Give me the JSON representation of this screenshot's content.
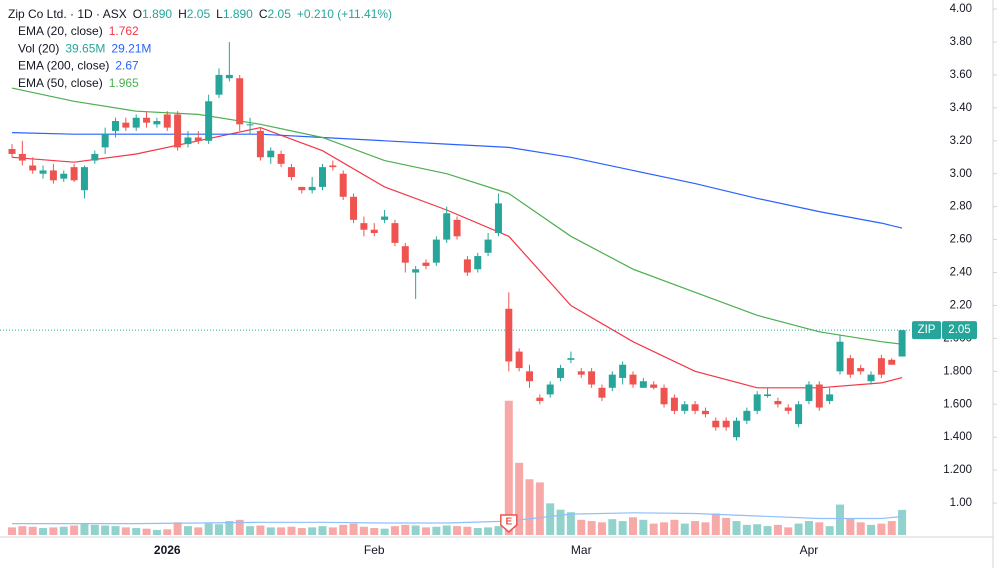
{
  "chart_data": {
    "type": "candlestick",
    "title": "Zip Co Ltd. · 1D · ASX",
    "ohlc_letters": [
      "O",
      "H",
      "L",
      "C"
    ],
    "ohlc_labels": [
      "1.890",
      "2.05",
      "1.890",
      "2.05"
    ],
    "change_label": "+0.210 (+11.41%)",
    "symbol_tag": "ZIP",
    "event_marker": "E",
    "up_color": "#26a69a",
    "down_color": "#ef5350",
    "categories": [
      null,
      null,
      null,
      null,
      null,
      null,
      null,
      null,
      null,
      null,
      null,
      null,
      null,
      null,
      null,
      "2026",
      null,
      null,
      null,
      null,
      null,
      null,
      null,
      null,
      null,
      null,
      null,
      null,
      null,
      null,
      null,
      null,
      null,
      null,
      null,
      "Feb",
      null,
      null,
      null,
      null,
      null,
      null,
      null,
      null,
      null,
      null,
      null,
      null,
      null,
      null,
      null,
      null,
      null,
      null,
      null,
      "Mar",
      null,
      null,
      null,
      null,
      null,
      null,
      null,
      null,
      null,
      null,
      null,
      null,
      null,
      null,
      null,
      null,
      null,
      null,
      null,
      null,
      null,
      "Apr",
      null,
      null,
      null,
      null,
      null,
      null,
      null,
      null,
      null
    ],
    "open": [
      3.15,
      3.12,
      3.05,
      3.0,
      3.02,
      2.97,
      3.04,
      2.9,
      3.08,
      3.16,
      3.26,
      3.31,
      3.28,
      3.34,
      3.3,
      3.36,
      3.36,
      3.18,
      3.22,
      3.2,
      3.48,
      3.58,
      3.58,
      3.3,
      3.26,
      3.1,
      3.12,
      3.04,
      2.92,
      2.9,
      2.92,
      3.05,
      3.0,
      2.86,
      2.7,
      2.66,
      2.72,
      2.7,
      2.56,
      2.4,
      2.46,
      2.46,
      2.6,
      2.72,
      2.48,
      2.42,
      2.52,
      2.64,
      2.18,
      1.92,
      1.8,
      1.64,
      1.66,
      1.76,
      1.87,
      1.8,
      1.8,
      1.7,
      1.7,
      1.76,
      1.78,
      1.7,
      1.72,
      1.7,
      1.64,
      1.56,
      1.6,
      1.56,
      1.5,
      1.5,
      1.4,
      1.5,
      1.56,
      1.65,
      1.62,
      1.58,
      1.48,
      1.62,
      1.72,
      1.62,
      1.8,
      1.88,
      1.82,
      1.74,
      1.88,
      1.87,
      1.89
    ],
    "high": [
      3.18,
      3.2,
      3.1,
      3.05,
      3.06,
      3.02,
      3.06,
      3.05,
      3.14,
      3.28,
      3.34,
      3.34,
      3.36,
      3.38,
      3.34,
      3.38,
      3.38,
      3.26,
      3.26,
      3.48,
      3.64,
      3.8,
      3.6,
      3.34,
      3.28,
      3.16,
      3.14,
      3.06,
      2.92,
      2.98,
      3.06,
      3.08,
      3.02,
      2.88,
      2.74,
      2.7,
      2.78,
      2.72,
      2.58,
      2.44,
      2.48,
      2.62,
      2.8,
      2.74,
      2.5,
      2.52,
      2.64,
      2.88,
      2.28,
      1.94,
      1.84,
      1.66,
      1.74,
      1.84,
      1.92,
      1.82,
      1.82,
      1.72,
      1.8,
      1.86,
      1.8,
      1.76,
      1.74,
      1.72,
      1.66,
      1.62,
      1.62,
      1.58,
      1.52,
      1.52,
      1.52,
      1.58,
      1.68,
      1.7,
      1.64,
      1.6,
      1.62,
      1.74,
      1.74,
      1.7,
      2.02,
      1.9,
      1.84,
      1.8,
      1.9,
      1.88,
      2.05
    ],
    "low": [
      3.1,
      3.05,
      3.0,
      2.97,
      2.94,
      2.95,
      2.95,
      2.85,
      3.06,
      3.12,
      3.22,
      3.26,
      3.26,
      3.28,
      3.28,
      3.26,
      3.14,
      3.16,
      3.18,
      3.18,
      3.46,
      3.56,
      3.26,
      3.24,
      3.08,
      3.06,
      3.04,
      2.96,
      2.88,
      2.88,
      2.9,
      3.02,
      2.84,
      2.7,
      2.62,
      2.62,
      2.7,
      2.56,
      2.4,
      2.24,
      2.42,
      2.44,
      2.58,
      2.6,
      2.38,
      2.4,
      2.5,
      2.62,
      1.8,
      1.8,
      1.7,
      1.6,
      1.64,
      1.74,
      1.85,
      1.76,
      1.7,
      1.62,
      1.68,
      1.72,
      1.7,
      1.7,
      1.69,
      1.58,
      1.54,
      1.54,
      1.54,
      1.52,
      1.44,
      1.44,
      1.38,
      1.48,
      1.54,
      1.64,
      1.58,
      1.54,
      1.46,
      1.6,
      1.56,
      1.6,
      1.78,
      1.76,
      1.78,
      1.72,
      1.76,
      1.84,
      1.89
    ],
    "close": [
      3.12,
      3.08,
      3.02,
      3.02,
      2.96,
      3.0,
      2.96,
      3.04,
      3.12,
      3.24,
      3.32,
      3.28,
      3.34,
      3.31,
      3.32,
      3.28,
      3.16,
      3.22,
      3.2,
      3.44,
      3.6,
      3.6,
      3.3,
      3.3,
      3.1,
      3.14,
      3.06,
      2.98,
      2.9,
      2.92,
      3.04,
      3.04,
      2.86,
      2.72,
      2.66,
      2.64,
      2.74,
      2.58,
      2.46,
      2.42,
      2.44,
      2.6,
      2.76,
      2.62,
      2.4,
      2.5,
      2.6,
      2.82,
      1.86,
      1.82,
      1.74,
      1.62,
      1.72,
      1.82,
      1.88,
      1.78,
      1.72,
      1.64,
      1.78,
      1.84,
      1.72,
      1.74,
      1.7,
      1.6,
      1.56,
      1.6,
      1.56,
      1.54,
      1.46,
      1.46,
      1.5,
      1.56,
      1.66,
      1.66,
      1.6,
      1.56,
      1.6,
      1.72,
      1.58,
      1.66,
      1.98,
      1.78,
      1.8,
      1.78,
      1.78,
      1.84,
      2.05
    ],
    "volume": [
      12,
      14,
      13,
      11,
      12,
      13,
      15,
      18,
      16,
      15,
      14,
      12,
      11,
      10,
      8,
      9,
      20,
      14,
      12,
      18,
      17,
      22,
      24,
      14,
      15,
      12,
      12,
      13,
      11,
      12,
      14,
      12,
      16,
      18,
      13,
      11,
      10,
      14,
      16,
      15,
      12,
      13,
      15,
      14,
      13,
      11,
      12,
      14,
      212,
      114,
      88,
      83,
      50,
      40,
      36,
      24,
      22,
      20,
      25,
      22,
      28,
      24,
      18,
      20,
      24,
      18,
      22,
      20,
      34,
      27,
      22,
      16,
      17,
      14,
      16,
      12,
      18,
      22,
      20,
      14,
      48,
      26,
      20,
      16,
      18,
      22,
      39.65
    ],
    "volume_name": "Vol (20)",
    "volume_label": "39.65M",
    "volume_ylim": [
      0,
      300
    ],
    "volume_ma": {
      "color": "#90bff9",
      "label": "29.21M",
      "x": [
        0,
        6,
        12,
        18,
        24,
        30,
        36,
        42,
        48,
        54,
        60,
        66,
        72,
        78,
        84,
        86
      ],
      "values": [
        18,
        18,
        18,
        19,
        20,
        20,
        19,
        19,
        22,
        33,
        35,
        34,
        30,
        26,
        26,
        29.21
      ]
    },
    "ylim": [
      0.794,
      4.055
    ],
    "yticks": [
      {
        "value": 1,
        "label": "1.00"
      },
      {
        "value": 1.2,
        "label": "1.200"
      },
      {
        "value": 1.4,
        "label": "1.400"
      },
      {
        "value": 1.6,
        "label": "1.600"
      },
      {
        "value": 1.8,
        "label": "1.800"
      },
      {
        "value": 2,
        "label": "2.000"
      },
      {
        "value": 2.2,
        "label": "2.20"
      },
      {
        "value": 2.4,
        "label": "2.40"
      },
      {
        "value": 2.6,
        "label": "2.60"
      },
      {
        "value": 2.8,
        "label": "2.80"
      },
      {
        "value": 3,
        "label": "3.00"
      },
      {
        "value": 3.2,
        "label": "3.20"
      },
      {
        "value": 3.4,
        "label": "3.40"
      },
      {
        "value": 3.6,
        "label": "3.60"
      },
      {
        "value": 3.8,
        "label": "3.80"
      },
      {
        "value": 4,
        "label": "4.00"
      }
    ],
    "series": [
      {
        "name": "EMA (20, close)",
        "color": "#f23645",
        "label": "1.762",
        "x": [
          0,
          6,
          12,
          18,
          24,
          30,
          36,
          42,
          48,
          54,
          60,
          66,
          72,
          78,
          84,
          86
        ],
        "values": [
          3.1,
          3.07,
          3.12,
          3.2,
          3.28,
          3.14,
          2.92,
          2.78,
          2.62,
          2.2,
          1.98,
          1.8,
          1.7,
          1.7,
          1.73,
          1.762
        ]
      },
      {
        "name": "EMA (200, close)",
        "color": "#2962ff",
        "label": "2.67",
        "x": [
          0,
          6,
          12,
          18,
          24,
          30,
          36,
          42,
          48,
          54,
          60,
          66,
          72,
          78,
          84,
          86
        ],
        "values": [
          3.25,
          3.24,
          3.24,
          3.24,
          3.24,
          3.22,
          3.2,
          3.18,
          3.16,
          3.1,
          3.02,
          2.94,
          2.85,
          2.77,
          2.7,
          2.67
        ]
      },
      {
        "name": "EMA (50, close)",
        "color": "#4caf50",
        "label": "1.965",
        "x": [
          0,
          6,
          12,
          18,
          24,
          30,
          36,
          42,
          48,
          54,
          60,
          66,
          72,
          78,
          84,
          86
        ],
        "values": [
          3.52,
          3.44,
          3.38,
          3.36,
          3.3,
          3.22,
          3.08,
          3.0,
          2.88,
          2.62,
          2.42,
          2.28,
          2.14,
          2.04,
          1.98,
          1.965
        ]
      }
    ]
  }
}
